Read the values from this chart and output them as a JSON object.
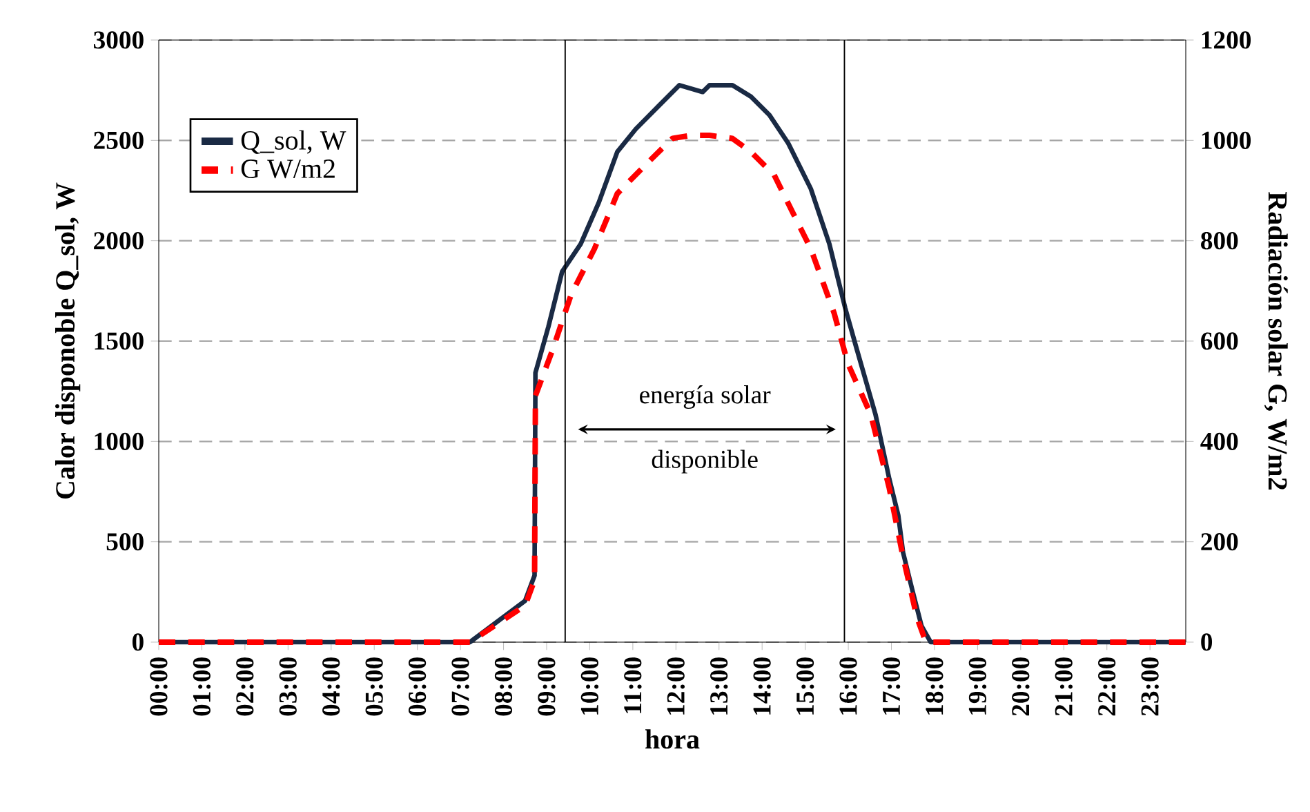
{
  "chart_data": {
    "type": "line",
    "xlabel": "hora",
    "ylabel": "Calor disponoble Q_sol, W",
    "y2label": "Radiación solar G, W/m2",
    "series": [
      {
        "name": "Q_sol, W",
        "color": "#1a2a44",
        "line_style": "solid",
        "x": [
          0,
          7.22,
          8.5,
          8.72,
          8.74,
          9.04,
          9.36,
          9.79,
          10.21,
          10.64,
          11.07,
          11.6,
          12.08,
          12.62,
          12.78,
          13.31,
          13.74,
          14.17,
          14.6,
          15.13,
          15.56,
          15.93,
          16.2,
          16.63,
          16.95,
          17.16,
          17.27,
          17.48,
          17.7,
          17.91,
          23.83
        ],
        "values": [
          0,
          0,
          206,
          332,
          1342,
          1571,
          1846,
          1984,
          2190,
          2443,
          2557,
          2672,
          2775,
          2741,
          2775,
          2775,
          2718,
          2626,
          2488,
          2259,
          1984,
          1663,
          1457,
          1135,
          814,
          631,
          447,
          264,
          80,
          0,
          0
        ]
      },
      {
        "name": "G W/m2",
        "color": "#ff0000",
        "line_style": "dashed",
        "axis": "y2",
        "x": [
          0,
          7.22,
          8.5,
          8.72,
          8.74,
          9.14,
          9.57,
          10.11,
          10.64,
          11.28,
          11.92,
          12.35,
          12.78,
          13.31,
          13.74,
          14.28,
          14.7,
          15.13,
          15.67,
          15.99,
          16.52,
          16.95,
          17.27,
          17.59,
          17.8,
          23.83
        ],
        "values": [
          0,
          0,
          73,
          124,
          491,
          583,
          693,
          784,
          894,
          950,
          1004,
          1010,
          1010,
          1004,
          977,
          931,
          858,
          784,
          656,
          555,
          454,
          307,
          170,
          50,
          0,
          0
        ]
      }
    ],
    "xlim": [
      0,
      23.83
    ],
    "xticks": [
      {
        "value": 0,
        "label": "00:00"
      },
      {
        "value": 1,
        "label": "01:00"
      },
      {
        "value": 2,
        "label": "02:00"
      },
      {
        "value": 3,
        "label": "03:00"
      },
      {
        "value": 4,
        "label": "04:00"
      },
      {
        "value": 5,
        "label": "05:00"
      },
      {
        "value": 6,
        "label": "06:00"
      },
      {
        "value": 7,
        "label": "07:00"
      },
      {
        "value": 8,
        "label": "08:00"
      },
      {
        "value": 9,
        "label": "09:00"
      },
      {
        "value": 10,
        "label": "10:00"
      },
      {
        "value": 11,
        "label": "11:00"
      },
      {
        "value": 12,
        "label": "12:00"
      },
      {
        "value": 13,
        "label": "13:00"
      },
      {
        "value": 14,
        "label": "14:00"
      },
      {
        "value": 15,
        "label": "15:00"
      },
      {
        "value": 16,
        "label": "16:00"
      },
      {
        "value": 17,
        "label": "17:00"
      },
      {
        "value": 18,
        "label": "18:00"
      },
      {
        "value": 19,
        "label": "19:00"
      },
      {
        "value": 20,
        "label": "20:00"
      },
      {
        "value": 21,
        "label": "21:00"
      },
      {
        "value": 22,
        "label": "22:00"
      },
      {
        "value": 23,
        "label": "23:00"
      }
    ],
    "ylim": [
      0,
      3000
    ],
    "yticks": [
      0,
      500,
      1000,
      1500,
      2000,
      2500,
      3000
    ],
    "y2lim": [
      0,
      1200
    ],
    "y2ticks": [
      0,
      200,
      400,
      600,
      800,
      1000,
      1200
    ],
    "ref_lines": [
      {
        "axis": "x",
        "value": 9.43,
        "color": "#000000"
      },
      {
        "axis": "x",
        "value": 15.91,
        "color": "#000000"
      }
    ],
    "annotations": [
      "energía solar",
      "disponible"
    ],
    "grid": "y",
    "legend": "top left",
    "marker": "none"
  }
}
